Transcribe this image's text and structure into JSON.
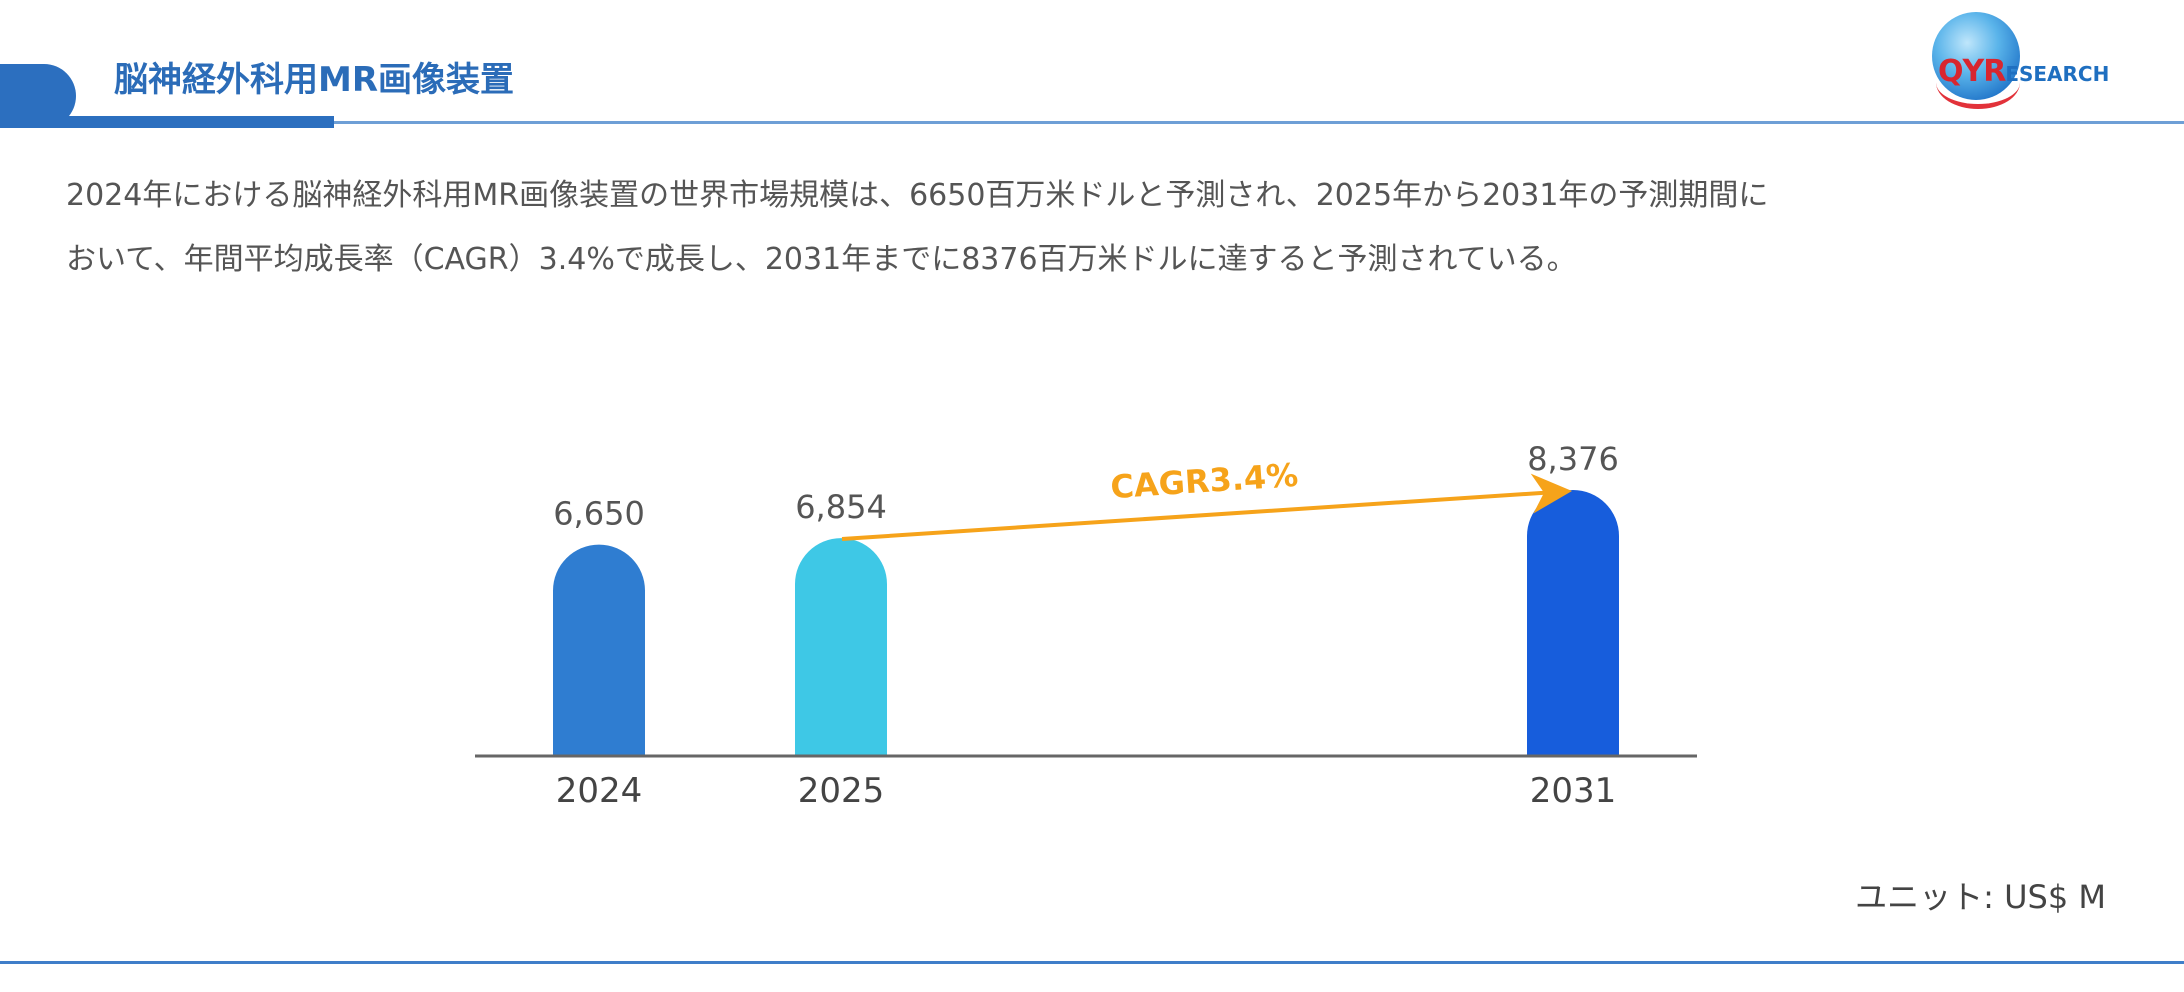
{
  "header": {
    "title": "脳神経外科用MR画像装置",
    "accent_color": "#2c6fbf",
    "logo": {
      "qyr": "QYR",
      "research": "ESEARCH"
    }
  },
  "description": {
    "line1": "2024年における脳神経外科用MR画像装置の世界市場規模は、6650百万米ドルと予測され、2025年から2031年の予測期間に",
    "line2": "おいて、年間平均成長率（CAGR）3.4%で成長し、2031年までに8376百万米ドルに達すると予測されている。"
  },
  "unit_label": "ユニット: US$ M",
  "chart_data": {
    "type": "bar",
    "title": "脳神経外科用MR画像装置",
    "categories": [
      "2024",
      "2025",
      "2031"
    ],
    "values": [
      6650,
      6854,
      8376
    ],
    "value_labels": [
      "6,650",
      "6,854",
      "8,376"
    ],
    "bar_colors": [
      "#2f7dd1",
      "#3ec8e6",
      "#175ddc"
    ],
    "xlabel": "",
    "ylabel": "",
    "unit": "US$ M",
    "grid": false,
    "legend": null,
    "annotations": [
      {
        "type": "arrow",
        "from": "2025",
        "to": "2031",
        "label": "CAGR3.4%",
        "color": "#f6a31a"
      }
    ]
  }
}
